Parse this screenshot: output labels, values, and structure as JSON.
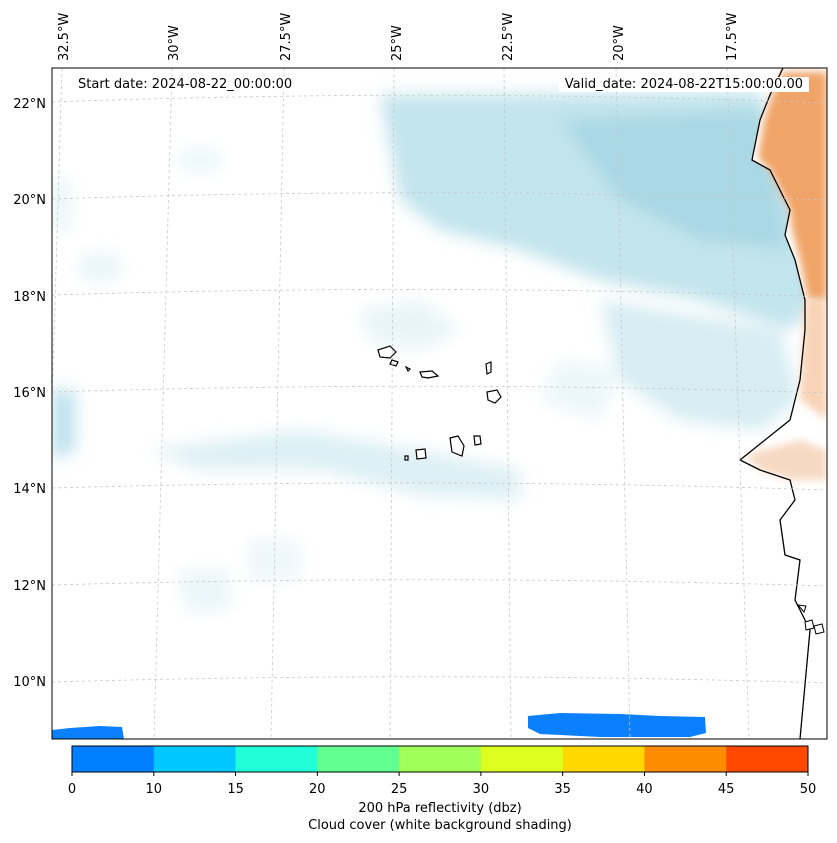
{
  "map": {
    "start_date": "Start date: 2024-08-22_00:00:00",
    "valid_date": "Valid_date: 2024-08-22T15:00:00.00",
    "lon_labels": [
      "32.5°W",
      "30°W",
      "27.5°W",
      "25°W",
      "22.5°W",
      "20°W",
      "17.5°W"
    ],
    "lat_labels": [
      "22°N",
      "20°N",
      "18°N",
      "16°N",
      "14°N",
      "12°N",
      "10°N"
    ],
    "region": "Cape Verde islands and West African coast",
    "colors": {
      "land_orange": "#f0a060",
      "cloud_blue": "#a8d8e6",
      "reflectivity_low": "#0080ff",
      "coastline": "#000000",
      "grid": "#c8c8c8"
    }
  },
  "colorbar": {
    "ticks": [
      "0",
      "10",
      "15",
      "20",
      "25",
      "30",
      "35",
      "40",
      "45",
      "50"
    ],
    "colors": [
      "#0080ff",
      "#00c8ff",
      "#20ffd8",
      "#60ff90",
      "#a0ff58",
      "#dcff20",
      "#ffd800",
      "#ff8c00",
      "#ff4800"
    ],
    "label": "200 hPa reflectivity (dbz)",
    "sublabel": "Cloud cover (white background shading)"
  }
}
